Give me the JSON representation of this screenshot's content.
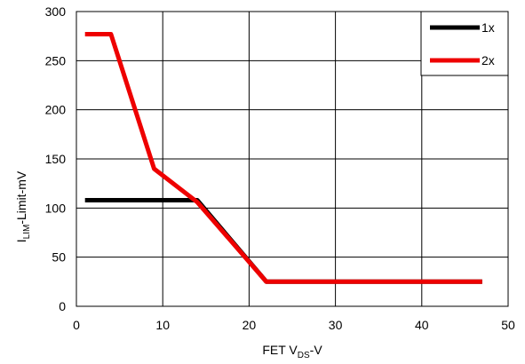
{
  "chart_data": {
    "type": "line",
    "title": "",
    "xlabel": {
      "main": "FET V",
      "sub": "DS",
      "suffix": "-V"
    },
    "ylabel": {
      "main": "I",
      "sub": "LIM",
      "suffix": "-Limit-mV"
    },
    "xlim": [
      0,
      50
    ],
    "ylim": [
      0,
      300
    ],
    "xticks": [
      0,
      10,
      20,
      30,
      40,
      50
    ],
    "yticks": [
      0,
      50,
      100,
      150,
      200,
      250,
      300
    ],
    "xtick_labels": [
      "0",
      "10",
      "20",
      "30",
      "40",
      "50"
    ],
    "ytick_labels": [
      "0",
      "50",
      "100",
      "150",
      "200",
      "250",
      "300"
    ],
    "grid": true,
    "legend_position": "top-right",
    "series": [
      {
        "name": "1x",
        "color": "#000000",
        "x": [
          1,
          14,
          22,
          47
        ],
        "y": [
          108,
          108,
          25,
          25
        ]
      },
      {
        "name": "2x",
        "color": "#ee0000",
        "x": [
          1,
          4,
          9,
          14,
          22,
          47
        ],
        "y": [
          277,
          277,
          140,
          106,
          25,
          25
        ]
      }
    ]
  }
}
